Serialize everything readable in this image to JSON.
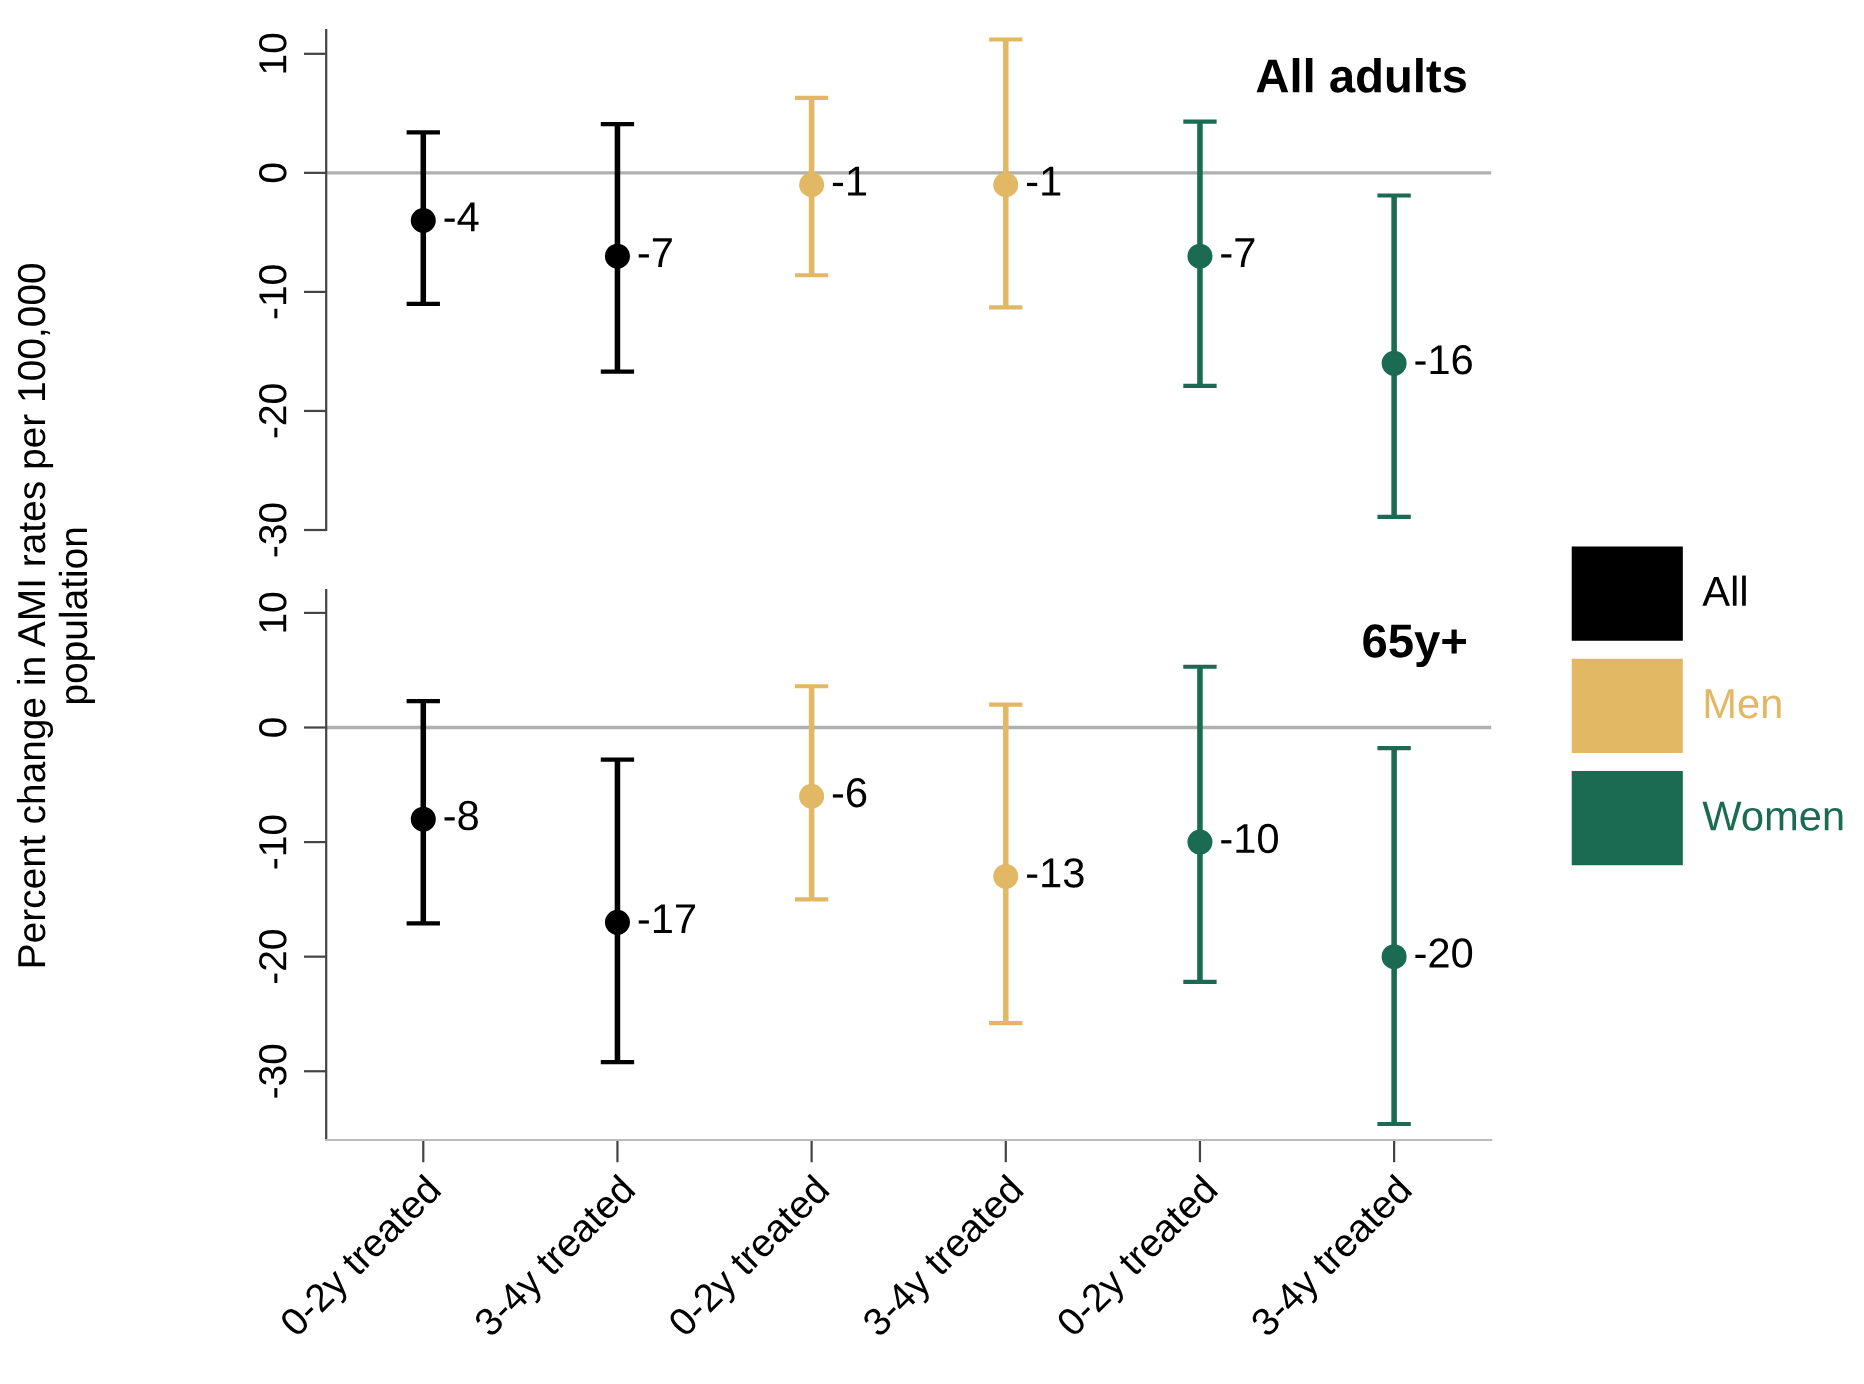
{
  "chart_data": [
    {
      "type": "scatter",
      "title": "All adults",
      "ylabel": "Percent change in AMI rates per 100,000 population",
      "categories": [
        null,
        null,
        null,
        null,
        null,
        null
      ],
      "series": [
        {
          "name": "All",
          "color": "#000000",
          "values": [
            -4,
            -7,
            null,
            null,
            null,
            null
          ],
          "errors": [
            [
              -11.0,
              3.4
            ],
            [
              -16.7,
              4.1
            ],
            null,
            null,
            null,
            null
          ]
        },
        {
          "name": "Men",
          "color": "#e3b865",
          "values": [
            null,
            null,
            -1,
            -1,
            null,
            null
          ],
          "errors": [
            null,
            null,
            [
              -8.6,
              6.3
            ],
            [
              -11.3,
              11.2
            ],
            null,
            null
          ]
        },
        {
          "name": "Women",
          "color": "#1a6b52",
          "values": [
            null,
            null,
            null,
            null,
            -7,
            -16
          ],
          "errors": [
            null,
            null,
            null,
            null,
            [
              -17.9,
              4.3
            ],
            [
              -28.9,
              -1.9
            ]
          ]
        }
      ],
      "ylim": [
        -30,
        12
      ],
      "yticks": [
        -30,
        -20,
        -10,
        0,
        10
      ],
      "ref_lines": [
        {
          "axis": "y",
          "value": 0,
          "color": "#b0b0b0"
        }
      ],
      "data_labels": true,
      "marker": "circle",
      "grid": false,
      "legend": "right",
      "tick_labels": "y"
    },
    {
      "type": "scatter",
      "title": "65y+",
      "categories": [
        "0-2y treated",
        "3-4y treated",
        "0-2y treated",
        "3-4y treated",
        "0-2y treated",
        "3-4y treated"
      ],
      "series": [
        {
          "color": "#000000",
          "values": [
            -8,
            -17,
            null,
            null,
            null,
            null
          ],
          "errors": [
            [
              -17.1,
              2.3
            ],
            [
              -29.2,
              -2.8
            ],
            null,
            null,
            null,
            null
          ]
        },
        {
          "color": "#e3b865",
          "values": [
            null,
            null,
            -6,
            -13,
            null,
            null
          ],
          "errors": [
            null,
            null,
            [
              -15.0,
              3.6
            ],
            [
              -25.8,
              2.0
            ],
            null,
            null
          ]
        },
        {
          "color": "#1a6b52",
          "values": [
            null,
            null,
            null,
            null,
            -10,
            -20
          ],
          "errors": [
            null,
            null,
            null,
            null,
            [
              -22.2,
              5.3
            ],
            [
              -34.6,
              -1.8
            ]
          ]
        }
      ],
      "ylim": [
        -36,
        12
      ],
      "yticks": [
        -30,
        -20,
        -10,
        0,
        10
      ],
      "ref_lines": [
        {
          "axis": "y",
          "value": 0,
          "color": "#b0b0b0"
        }
      ],
      "data_labels": true,
      "marker": "circle",
      "grid": false
    }
  ]
}
